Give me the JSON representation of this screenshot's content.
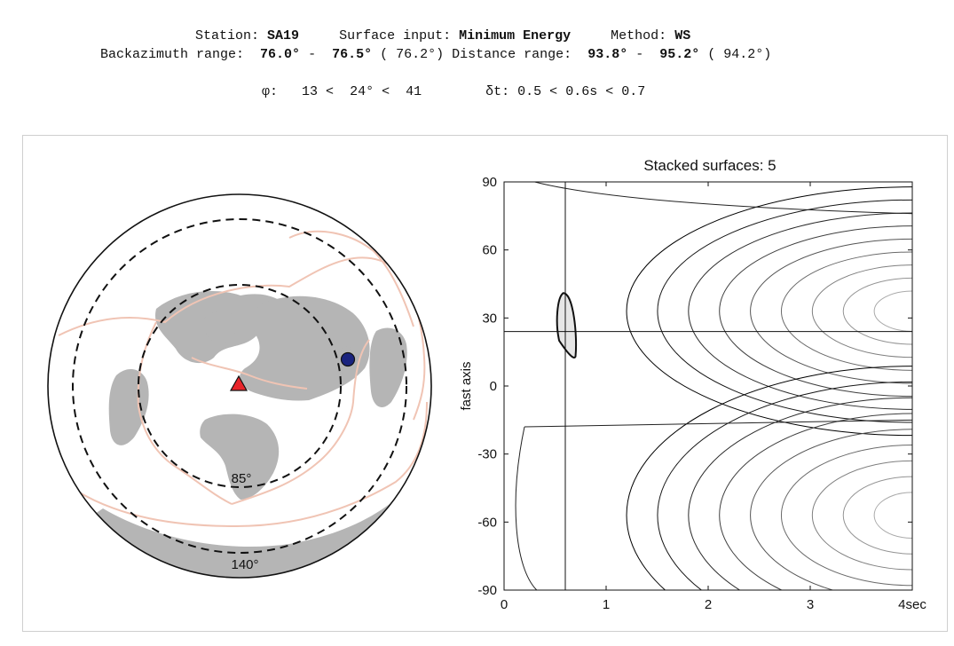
{
  "header": {
    "station_label": "Station:",
    "station": "SA19",
    "surface_label": "Surface input:",
    "surface": "Minimum Energy",
    "method_label": "Method:",
    "method": "WS",
    "baz_label": "Backazimuth range:",
    "baz_min": "76.0°",
    "baz_max": "76.5°",
    "baz_mid": "( 76.2°)",
    "dist_label": "Distance range:",
    "dist_min": "93.8°",
    "dist_max": "95.2°",
    "dist_mid": "( 94.2°)",
    "phi_label": "φ:",
    "phi_min": "13",
    "phi_best": "24°",
    "phi_max": "41",
    "dt_label": "δt:",
    "dt_min": "0.5",
    "dt_best": "0.6s",
    "dt_max": "0.7"
  },
  "map": {
    "inner_ring_label": "85°",
    "outer_ring_label": "140°",
    "station_color": "#e8242a",
    "event_color": "#1a237e",
    "land_color": "#b5b5b5",
    "plate_color": "#f0c4b4"
  },
  "chart_data": {
    "type": "contour",
    "title": "Stacked surfaces: 5",
    "xlabel": "",
    "ylabel": "fast axis",
    "xlim": [
      0,
      4
    ],
    "ylim": [
      -90,
      90
    ],
    "xticks": [
      "0",
      "1",
      "2",
      "3",
      "4sec"
    ],
    "yticks": [
      "-90",
      "-60",
      "-30",
      "0",
      "30",
      "60",
      "90"
    ],
    "best_dt": 0.6,
    "best_phi": 24,
    "confidence_region": {
      "dt_min": 0.5,
      "dt_max": 0.7,
      "phi_min": 13,
      "phi_max": 41
    },
    "contour_levels": 9,
    "contour_centers": [
      {
        "dt": 4.0,
        "phi": 33
      },
      {
        "dt": 4.0,
        "phi": -57
      }
    ]
  }
}
